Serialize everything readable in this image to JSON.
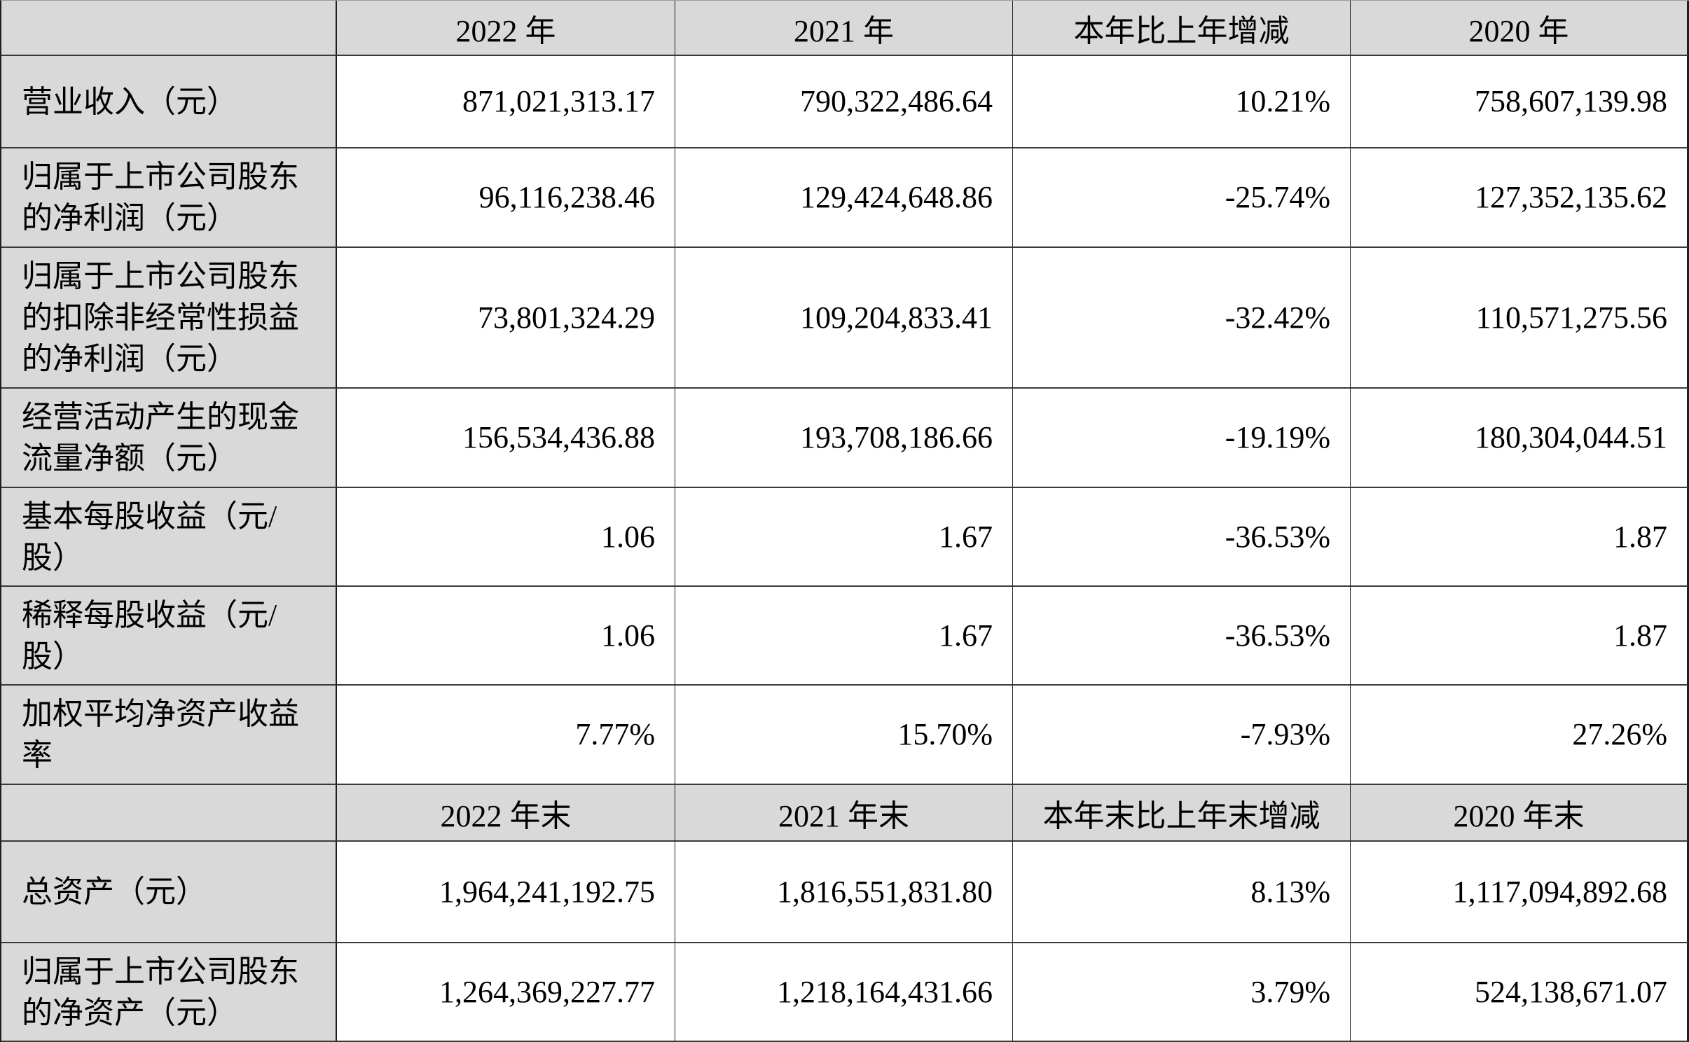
{
  "style": {
    "header_bg": "#d9d9d9",
    "label_bg": "#d9d9d9",
    "cell_bg": "#ffffff",
    "border": "#1e1e1e",
    "text": "#000000"
  },
  "chart_data": {
    "type": "table",
    "title": "",
    "sections": [
      {
        "columns": [
          "",
          "2022 年",
          "2021 年",
          "本年比上年增减",
          "2020 年"
        ],
        "rows": [
          {
            "label": "营业收入（元）",
            "values": [
              "871,021,313.17",
              "790,322,486.64",
              "10.21%",
              "758,607,139.98"
            ]
          },
          {
            "label": "归属于上市公司股东\n的净利润（元）",
            "values": [
              "96,116,238.46",
              "129,424,648.86",
              "-25.74%",
              "127,352,135.62"
            ]
          },
          {
            "label": "归属于上市公司股东\n的扣除非经常性损益\n的净利润（元）",
            "values": [
              "73,801,324.29",
              "109,204,833.41",
              "-32.42%",
              "110,571,275.56"
            ]
          },
          {
            "label": "经营活动产生的现金\n流量净额（元）",
            "values": [
              "156,534,436.88",
              "193,708,186.66",
              "-19.19%",
              "180,304,044.51"
            ]
          },
          {
            "label": "基本每股收益（元/\n股）",
            "values": [
              "1.06",
              "1.67",
              "-36.53%",
              "1.87"
            ]
          },
          {
            "label": "稀释每股收益（元/\n股）",
            "values": [
              "1.06",
              "1.67",
              "-36.53%",
              "1.87"
            ]
          },
          {
            "label": "加权平均净资产收益\n率",
            "values": [
              "7.77%",
              "15.70%",
              "-7.93%",
              "27.26%"
            ]
          }
        ]
      },
      {
        "columns": [
          "",
          "2022 年末",
          "2021 年末",
          "本年末比上年末增减",
          "2020 年末"
        ],
        "rows": [
          {
            "label": "总资产（元）",
            "values": [
              "1,964,241,192.75",
              "1,816,551,831.80",
              "8.13%",
              "1,117,094,892.68"
            ]
          },
          {
            "label": "归属于上市公司股东\n的净资产（元）",
            "values": [
              "1,264,369,227.77",
              "1,218,164,431.66",
              "3.79%",
              "524,138,671.07"
            ]
          }
        ]
      }
    ]
  }
}
